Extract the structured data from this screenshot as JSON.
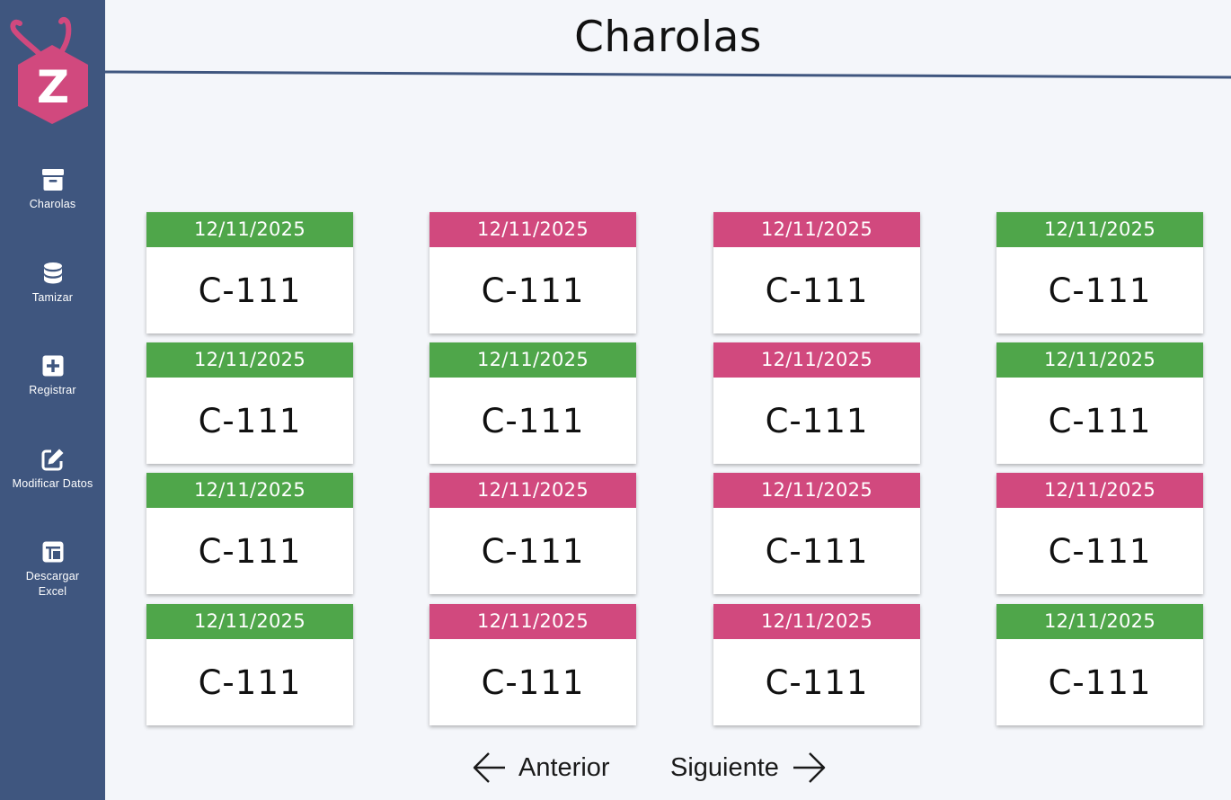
{
  "app": {
    "page_title": "Charolas",
    "accent_green": "#4fa64a",
    "accent_pink": "#d1497e",
    "sidebar_color": "#3f567f"
  },
  "logo": {
    "letter": "Z",
    "color": "#d1497e"
  },
  "sidebar": {
    "items": [
      {
        "label": "Charolas",
        "icon": "archive-box-icon"
      },
      {
        "label": "Tamizar",
        "icon": "database-icon"
      },
      {
        "label": "Registrar",
        "icon": "plus-square-icon"
      },
      {
        "label": "Modificar Datos",
        "icon": "edit-icon"
      },
      {
        "label": "Descargar Excel",
        "icon": "spreadsheet-icon"
      }
    ]
  },
  "cards": [
    {
      "date": "12/11/2025",
      "code": "C-111",
      "status": "green"
    },
    {
      "date": "12/11/2025",
      "code": "C-111",
      "status": "pink"
    },
    {
      "date": "12/11/2025",
      "code": "C-111",
      "status": "pink"
    },
    {
      "date": "12/11/2025",
      "code": "C-111",
      "status": "green"
    },
    {
      "date": "12/11/2025",
      "code": "C-111",
      "status": "green"
    },
    {
      "date": "12/11/2025",
      "code": "C-111",
      "status": "green"
    },
    {
      "date": "12/11/2025",
      "code": "C-111",
      "status": "pink"
    },
    {
      "date": "12/11/2025",
      "code": "C-111",
      "status": "green"
    },
    {
      "date": "12/11/2025",
      "code": "C-111",
      "status": "green"
    },
    {
      "date": "12/11/2025",
      "code": "C-111",
      "status": "pink"
    },
    {
      "date": "12/11/2025",
      "code": "C-111",
      "status": "pink"
    },
    {
      "date": "12/11/2025",
      "code": "C-111",
      "status": "pink"
    },
    {
      "date": "12/11/2025",
      "code": "C-111",
      "status": "green"
    },
    {
      "date": "12/11/2025",
      "code": "C-111",
      "status": "pink"
    },
    {
      "date": "12/11/2025",
      "code": "C-111",
      "status": "pink"
    },
    {
      "date": "12/11/2025",
      "code": "C-111",
      "status": "green"
    }
  ],
  "pagination": {
    "prev_label": "Anterior",
    "next_label": "Siguiente"
  }
}
